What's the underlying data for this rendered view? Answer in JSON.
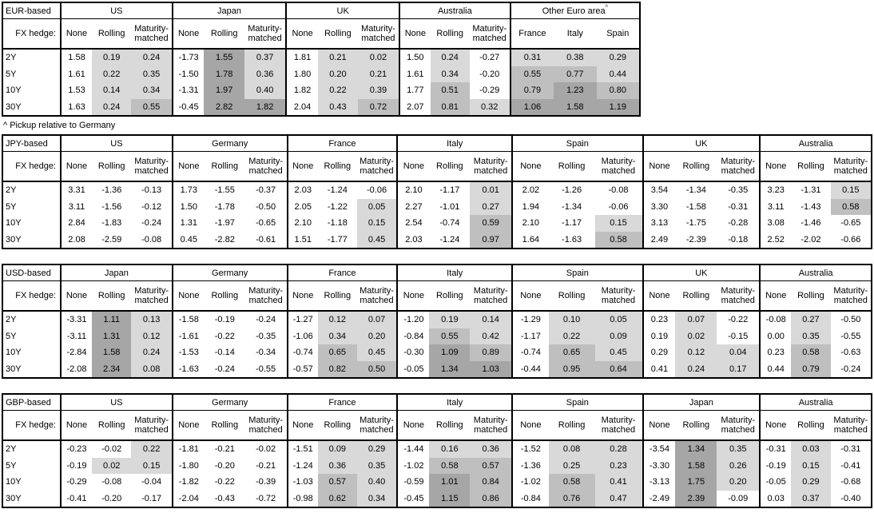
{
  "footnote": "^ Pickup relative to Germany",
  "fx_hedge_label": "FX hedge:",
  "tenors": [
    "2Y",
    "5Y",
    "10Y",
    "30Y"
  ],
  "hedge_types": [
    "None",
    "Rolling",
    "Maturity-matched"
  ],
  "colors": {
    "border": "#000000",
    "background": "#ffffff",
    "shade_light": "#d9d9d9",
    "shade_medium": "#bfbfbf",
    "shade_dark": "#a6a6a6"
  },
  "shading": {
    "light_below": 0.5,
    "medium_below": 1.0,
    "shaded_if": "value > 0 in hedged/pickup columns"
  },
  "tables": [
    {
      "base": "EUR-based",
      "groups": [
        {
          "name": "US",
          "rows": [
            [
              "1.58",
              "0.19",
              "0.24"
            ],
            [
              "1.61",
              "0.22",
              "0.35"
            ],
            [
              "1.53",
              "0.14",
              "0.34"
            ],
            [
              "1.63",
              "0.24",
              "0.55"
            ]
          ]
        },
        {
          "name": "Japan",
          "rows": [
            [
              "-1.73",
              "1.55",
              "0.37"
            ],
            [
              "-1.50",
              "1.78",
              "0.36"
            ],
            [
              "-1.31",
              "1.97",
              "0.40"
            ],
            [
              "-0.45",
              "2.82",
              "1.82"
            ]
          ]
        },
        {
          "name": "UK",
          "rows": [
            [
              "1.81",
              "0.21",
              "0.02"
            ],
            [
              "1.80",
              "0.20",
              "0.21"
            ],
            [
              "1.82",
              "0.22",
              "0.39"
            ],
            [
              "2.04",
              "0.43",
              "0.72"
            ]
          ]
        },
        {
          "name": "Australia",
          "rows": [
            [
              "1.50",
              "0.24",
              "-0.27"
            ],
            [
              "1.61",
              "0.34",
              "-0.20"
            ],
            [
              "1.77",
              "0.51",
              "-0.29"
            ],
            [
              "2.07",
              "0.81",
              "0.32"
            ]
          ]
        },
        {
          "name": "Other Euro area",
          "sup": "^",
          "pickup": true,
          "headers": [
            "France",
            "Italy",
            "Spain"
          ],
          "rows": [
            [
              "0.31",
              "0.38",
              "0.29"
            ],
            [
              "0.55",
              "0.77",
              "0.44"
            ],
            [
              "0.79",
              "1.23",
              "0.80"
            ],
            [
              "1.06",
              "1.58",
              "1.19"
            ]
          ]
        }
      ]
    },
    {
      "base": "JPY-based",
      "groups": [
        {
          "name": "US",
          "rows": [
            [
              "3.31",
              "-1.36",
              "-0.13"
            ],
            [
              "3.11",
              "-1.56",
              "-0.12"
            ],
            [
              "2.84",
              "-1.83",
              "-0.24"
            ],
            [
              "2.08",
              "-2.59",
              "-0.08"
            ]
          ]
        },
        {
          "name": "Germany",
          "rows": [
            [
              "1.73",
              "-1.55",
              "-0.37"
            ],
            [
              "1.50",
              "-1.78",
              "-0.50"
            ],
            [
              "1.31",
              "-1.97",
              "-0.65"
            ],
            [
              "0.45",
              "-2.82",
              "-0.61"
            ]
          ]
        },
        {
          "name": "France",
          "rows": [
            [
              "2.03",
              "-1.24",
              "-0.06"
            ],
            [
              "2.05",
              "-1.22",
              "0.05"
            ],
            [
              "2.10",
              "-1.18",
              "0.15"
            ],
            [
              "1.51",
              "-1.77",
              "0.45"
            ]
          ]
        },
        {
          "name": "Italy",
          "rows": [
            [
              "2.10",
              "-1.17",
              "0.01"
            ],
            [
              "2.27",
              "-1.01",
              "0.27"
            ],
            [
              "2.54",
              "-0.74",
              "0.59"
            ],
            [
              "2.03",
              "-1.24",
              "0.97"
            ]
          ]
        },
        {
          "name": "Spain",
          "rows": [
            [
              "2.02",
              "-1.26",
              "-0.08"
            ],
            [
              "1.94",
              "-1.34",
              "-0.06"
            ],
            [
              "2.10",
              "-1.17",
              "0.15"
            ],
            [
              "1.64",
              "-1.63",
              "0.58"
            ]
          ]
        },
        {
          "name": "UK",
          "rows": [
            [
              "3.54",
              "-1.34",
              "-0.35"
            ],
            [
              "3.30",
              "-1.58",
              "-0.31"
            ],
            [
              "3.13",
              "-1.75",
              "-0.28"
            ],
            [
              "2.49",
              "-2.39",
              "-0.18"
            ]
          ]
        },
        {
          "name": "Australia",
          "rows": [
            [
              "3.23",
              "-1.31",
              "0.15"
            ],
            [
              "3.11",
              "-1.43",
              "0.58"
            ],
            [
              "3.08",
              "-1.46",
              "-0.65"
            ],
            [
              "2.52",
              "-2.02",
              "-0.66"
            ]
          ]
        }
      ]
    },
    {
      "base": "USD-based",
      "groups": [
        {
          "name": "Japan",
          "rows": [
            [
              "-3.31",
              "1.11",
              "0.13"
            ],
            [
              "-3.11",
              "1.31",
              "0.12"
            ],
            [
              "-2.84",
              "1.58",
              "0.24"
            ],
            [
              "-2.08",
              "2.34",
              "0.08"
            ]
          ]
        },
        {
          "name": "Germany",
          "rows": [
            [
              "-1.58",
              "-0.19",
              "-0.24"
            ],
            [
              "-1.61",
              "-0.22",
              "-0.35"
            ],
            [
              "-1.53",
              "-0.14",
              "-0.34"
            ],
            [
              "-1.63",
              "-0.24",
              "-0.55"
            ]
          ]
        },
        {
          "name": "France",
          "rows": [
            [
              "-1.27",
              "0.12",
              "0.07"
            ],
            [
              "-1.06",
              "0.34",
              "0.20"
            ],
            [
              "-0.74",
              "0.65",
              "0.45"
            ],
            [
              "-0.57",
              "0.82",
              "0.50"
            ]
          ]
        },
        {
          "name": "Italy",
          "rows": [
            [
              "-1.20",
              "0.19",
              "0.14"
            ],
            [
              "-0.84",
              "0.55",
              "0.42"
            ],
            [
              "-0.30",
              "1.09",
              "0.89"
            ],
            [
              "-0.05",
              "1.34",
              "1.03"
            ]
          ]
        },
        {
          "name": "Spain",
          "rows": [
            [
              "-1.29",
              "0.10",
              "0.05"
            ],
            [
              "-1.17",
              "0.22",
              "0.09"
            ],
            [
              "-0.74",
              "0.65",
              "0.45"
            ],
            [
              "-0.44",
              "0.95",
              "0.64"
            ]
          ]
        },
        {
          "name": "UK",
          "rows": [
            [
              "0.23",
              "0.07",
              "-0.22"
            ],
            [
              "0.19",
              "0.02",
              "-0.15"
            ],
            [
              "0.29",
              "0.12",
              "0.04"
            ],
            [
              "0.41",
              "0.24",
              "0.17"
            ]
          ]
        },
        {
          "name": "Australia",
          "rows": [
            [
              "-0.08",
              "0.27",
              "-0.50"
            ],
            [
              "0.00",
              "0.35",
              "-0.55"
            ],
            [
              "0.23",
              "0.58",
              "-0.63"
            ],
            [
              "0.44",
              "0.79",
              "-0.24"
            ]
          ]
        }
      ]
    },
    {
      "base": "GBP-based",
      "groups": [
        {
          "name": "US",
          "rows": [
            [
              "-0.23",
              "-0.02",
              "0.22"
            ],
            [
              "-0.19",
              "0.02",
              "0.15"
            ],
            [
              "-0.29",
              "-0.08",
              "-0.04"
            ],
            [
              "-0.41",
              "-0.20",
              "-0.17"
            ]
          ]
        },
        {
          "name": "Germany",
          "rows": [
            [
              "-1.81",
              "-0.21",
              "-0.02"
            ],
            [
              "-1.80",
              "-0.20",
              "-0.21"
            ],
            [
              "-1.82",
              "-0.22",
              "-0.39"
            ],
            [
              "-2.04",
              "-0.43",
              "-0.72"
            ]
          ]
        },
        {
          "name": "France",
          "rows": [
            [
              "-1.51",
              "0.09",
              "0.29"
            ],
            [
              "-1.24",
              "0.36",
              "0.35"
            ],
            [
              "-1.03",
              "0.57",
              "0.40"
            ],
            [
              "-0.98",
              "0.62",
              "0.34"
            ]
          ]
        },
        {
          "name": "Italy",
          "rows": [
            [
              "-1.44",
              "0.16",
              "0.36"
            ],
            [
              "-1.02",
              "0.58",
              "0.57"
            ],
            [
              "-0.59",
              "1.01",
              "0.84"
            ],
            [
              "-0.45",
              "1.15",
              "0.86"
            ]
          ]
        },
        {
          "name": "Spain",
          "rows": [
            [
              "-1.52",
              "0.08",
              "0.28"
            ],
            [
              "-1.36",
              "0.25",
              "0.23"
            ],
            [
              "-1.02",
              "0.58",
              "0.41"
            ],
            [
              "-0.84",
              "0.76",
              "0.47"
            ]
          ]
        },
        {
          "name": "Japan",
          "rows": [
            [
              "-3.54",
              "1.34",
              "0.35"
            ],
            [
              "-3.30",
              "1.58",
              "0.26"
            ],
            [
              "-3.13",
              "1.75",
              "0.20"
            ],
            [
              "-2.49",
              "2.39",
              "-0.09"
            ]
          ]
        },
        {
          "name": "Australia",
          "rows": [
            [
              "-0.31",
              "0.03",
              "-0.31"
            ],
            [
              "-0.19",
              "0.15",
              "-0.41"
            ],
            [
              "-0.05",
              "0.29",
              "-0.68"
            ],
            [
              "0.03",
              "0.37",
              "-0.40"
            ]
          ]
        }
      ]
    }
  ]
}
